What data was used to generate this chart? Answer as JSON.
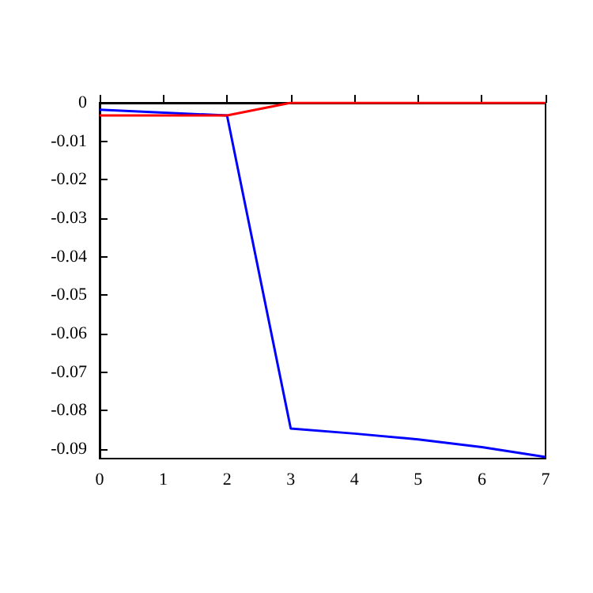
{
  "chart_data": {
    "type": "line",
    "series": [
      {
        "color": "#0000ff",
        "x": [
          0,
          2,
          3,
          4,
          5,
          6,
          7
        ],
        "values": [
          -0.0018,
          -0.0033,
          -0.0847,
          -0.086,
          -0.0875,
          -0.0895,
          -0.0921
        ]
      },
      {
        "color": "#ff0000",
        "x": [
          0,
          2,
          3,
          7
        ],
        "values": [
          -0.0033,
          -0.0033,
          0,
          0
        ]
      }
    ],
    "xlim": [
      0,
      7
    ],
    "xticks": [
      0,
      1,
      2,
      3,
      4,
      5,
      6,
      7
    ],
    "ylim": [
      -0.0925,
      0
    ],
    "yticks": [
      -0.09,
      -0.08,
      -0.07,
      -0.06,
      -0.05,
      -0.04,
      -0.03,
      -0.02,
      -0.01,
      0
    ],
    "grid": false,
    "legend": false,
    "marker": "none",
    "line_style": "solid"
  }
}
